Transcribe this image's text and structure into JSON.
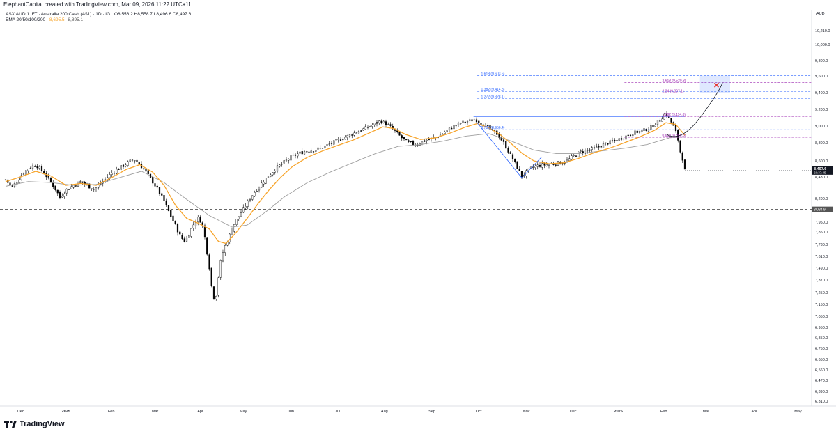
{
  "header": {
    "attribution": "ElephantCapital created with TradingView.com, Mar 09, 2026 11:22 UTC+11"
  },
  "legend": {
    "symbol": "ASX:AUD.1.IFT · Australia 200 Cash (A$1) · 1D · IG",
    "ohlc": "O8,556.2  H8,558.7  L8,496.6  C8,497.6",
    "ema_label": "EMA 20/50/100/200",
    "ema_val1": "8,695.5",
    "ema_val2": "8,895.1"
  },
  "price_axis": {
    "currency": "AUD",
    "current_price": "8,497.6",
    "countdown": "23:37:45",
    "support_label": "8,084.9"
  },
  "branding": {
    "logo_text": "TradingView"
  },
  "colors": {
    "up": "#ffffff",
    "down": "#000000",
    "ema_fast": "#f7a42a",
    "ema_slow": "#9e9e9e",
    "fib_blue": "#2962ff",
    "fib_purple": "#9c27b0",
    "target": "#e53935"
  },
  "chart_data": {
    "type": "candlestick",
    "y_ticks": [
      {
        "v": 10210,
        "label": "10,210.0"
      },
      {
        "v": 10000,
        "label": "10,000.0"
      },
      {
        "v": 9800,
        "label": "9,800.0"
      },
      {
        "v": 9600,
        "label": "9,600.0"
      },
      {
        "v": 9400,
        "label": "9,400.0"
      },
      {
        "v": 9200,
        "label": "9,200.0"
      },
      {
        "v": 9000,
        "label": "9,000.0"
      },
      {
        "v": 8800,
        "label": "8,800.0"
      },
      {
        "v": 8600,
        "label": "8,600.0"
      },
      {
        "v": 8430,
        "label": "8,430.0"
      },
      {
        "v": 8200,
        "label": "8,200.0"
      },
      {
        "v": 7950,
        "label": "7,950.0"
      },
      {
        "v": 7850,
        "label": "7,850.0"
      },
      {
        "v": 7730,
        "label": "7,730.0"
      },
      {
        "v": 7610,
        "label": "7,610.0"
      },
      {
        "v": 7490,
        "label": "7,490.0"
      },
      {
        "v": 7370,
        "label": "7,370.0"
      },
      {
        "v": 7250,
        "label": "7,250.0"
      },
      {
        "v": 7150,
        "label": "7,150.0"
      },
      {
        "v": 7050,
        "label": "7,050.0"
      },
      {
        "v": 6950,
        "label": "6,950.0"
      },
      {
        "v": 6850,
        "label": "6,850.0"
      },
      {
        "v": 6750,
        "label": "6,750.0"
      },
      {
        "v": 6650,
        "label": "6,650.0"
      },
      {
        "v": 6560,
        "label": "6,560.0"
      },
      {
        "v": 6470,
        "label": "6,470.0"
      },
      {
        "v": 6390,
        "label": "6,390.0"
      },
      {
        "v": 6310,
        "label": "6,310.0"
      }
    ],
    "x_ticks": [
      "Dec",
      "2025",
      "Feb",
      "Mar",
      "Apr",
      "May",
      "Jun",
      "Jul",
      "Aug",
      "Sep",
      "Oct",
      "Nov",
      "Dec",
      "2026",
      "Feb",
      "Mar",
      "Apr",
      "May"
    ],
    "x_tick_days": [
      20,
      80,
      140,
      198,
      258,
      315,
      378,
      440,
      502,
      565,
      627,
      690,
      752,
      812,
      872,
      928,
      992,
      1050
    ],
    "total_days": 1068,
    "close_path": [
      [
        0,
        8400
      ],
      [
        8,
        8320
      ],
      [
        15,
        8380
      ],
      [
        22,
        8460
      ],
      [
        30,
        8520
      ],
      [
        40,
        8560
      ],
      [
        50,
        8480
      ],
      [
        58,
        8400
      ],
      [
        66,
        8300
      ],
      [
        72,
        8210
      ],
      [
        80,
        8290
      ],
      [
        90,
        8340
      ],
      [
        100,
        8380
      ],
      [
        110,
        8330
      ],
      [
        118,
        8300
      ],
      [
        126,
        8360
      ],
      [
        134,
        8420
      ],
      [
        142,
        8480
      ],
      [
        150,
        8520
      ],
      [
        160,
        8570
      ],
      [
        170,
        8620
      ],
      [
        178,
        8560
      ],
      [
        186,
        8480
      ],
      [
        194,
        8390
      ],
      [
        202,
        8290
      ],
      [
        210,
        8170
      ],
      [
        218,
        8030
      ],
      [
        226,
        7900
      ],
      [
        232,
        7800
      ],
      [
        238,
        7760
      ],
      [
        244,
        7850
      ],
      [
        250,
        7940
      ],
      [
        256,
        8000
      ],
      [
        262,
        7900
      ],
      [
        266,
        7700
      ],
      [
        270,
        7500
      ],
      [
        274,
        7250
      ],
      [
        278,
        7180
      ],
      [
        282,
        7400
      ],
      [
        286,
        7600
      ],
      [
        290,
        7700
      ],
      [
        296,
        7800
      ],
      [
        304,
        7950
      ],
      [
        312,
        8050
      ],
      [
        320,
        8150
      ],
      [
        328,
        8250
      ],
      [
        338,
        8350
      ],
      [
        348,
        8440
      ],
      [
        358,
        8520
      ],
      [
        368,
        8580
      ],
      [
        378,
        8640
      ],
      [
        388,
        8680
      ],
      [
        398,
        8710
      ],
      [
        408,
        8720
      ],
      [
        418,
        8740
      ],
      [
        428,
        8780
      ],
      [
        438,
        8820
      ],
      [
        448,
        8860
      ],
      [
        458,
        8900
      ],
      [
        468,
        8940
      ],
      [
        478,
        8980
      ],
      [
        488,
        9020
      ],
      [
        496,
        9060
      ],
      [
        502,
        9040
      ],
      [
        510,
        8990
      ],
      [
        518,
        8920
      ],
      [
        526,
        8850
      ],
      [
        534,
        8800
      ],
      [
        544,
        8780
      ],
      [
        554,
        8820
      ],
      [
        564,
        8850
      ],
      [
        574,
        8880
      ],
      [
        584,
        8940
      ],
      [
        594,
        9000
      ],
      [
        604,
        9040
      ],
      [
        614,
        9060
      ],
      [
        622,
        9080
      ],
      [
        628,
        9050
      ],
      [
        636,
        9000
      ],
      [
        644,
        8950
      ],
      [
        652,
        8900
      ],
      [
        660,
        8800
      ],
      [
        668,
        8680
      ],
      [
        676,
        8560
      ],
      [
        684,
        8440
      ],
      [
        690,
        8480
      ],
      [
        698,
        8530
      ],
      [
        706,
        8550
      ],
      [
        716,
        8560
      ],
      [
        726,
        8570
      ],
      [
        736,
        8580
      ],
      [
        744,
        8600
      ],
      [
        752,
        8650
      ],
      [
        762,
        8700
      ],
      [
        772,
        8720
      ],
      [
        782,
        8740
      ],
      [
        792,
        8780
      ],
      [
        802,
        8810
      ],
      [
        812,
        8840
      ],
      [
        822,
        8880
      ],
      [
        832,
        8920
      ],
      [
        842,
        8940
      ],
      [
        852,
        8970
      ],
      [
        860,
        9020
      ],
      [
        868,
        9080
      ],
      [
        874,
        9150
      ],
      [
        880,
        9080
      ],
      [
        886,
        8980
      ],
      [
        890,
        8880
      ],
      [
        894,
        8700
      ],
      [
        898,
        8600
      ],
      [
        900,
        8497
      ]
    ],
    "ema_fast_path": [
      [
        0,
        8380
      ],
      [
        20,
        8430
      ],
      [
        40,
        8490
      ],
      [
        60,
        8440
      ],
      [
        80,
        8340
      ],
      [
        100,
        8360
      ],
      [
        120,
        8340
      ],
      [
        140,
        8420
      ],
      [
        160,
        8510
      ],
      [
        178,
        8560
      ],
      [
        195,
        8480
      ],
      [
        210,
        8340
      ],
      [
        225,
        8130
      ],
      [
        240,
        7990
      ],
      [
        255,
        7940
      ],
      [
        270,
        7880
      ],
      [
        282,
        7760
      ],
      [
        292,
        7740
      ],
      [
        305,
        7840
      ],
      [
        320,
        7990
      ],
      [
        335,
        8150
      ],
      [
        350,
        8300
      ],
      [
        365,
        8430
      ],
      [
        380,
        8540
      ],
      [
        400,
        8640
      ],
      [
        420,
        8710
      ],
      [
        440,
        8770
      ],
      [
        460,
        8830
      ],
      [
        480,
        8910
      ],
      [
        500,
        8990
      ],
      [
        515,
        8970
      ],
      [
        530,
        8900
      ],
      [
        550,
        8840
      ],
      [
        570,
        8860
      ],
      [
        590,
        8920
      ],
      [
        610,
        8990
      ],
      [
        625,
        9030
      ],
      [
        640,
        8980
      ],
      [
        655,
        8900
      ],
      [
        670,
        8790
      ],
      [
        685,
        8680
      ],
      [
        700,
        8600
      ],
      [
        720,
        8570
      ],
      [
        740,
        8580
      ],
      [
        760,
        8630
      ],
      [
        780,
        8690
      ],
      [
        800,
        8740
      ],
      [
        820,
        8800
      ],
      [
        840,
        8870
      ],
      [
        860,
        8950
      ],
      [
        875,
        9040
      ],
      [
        888,
        9020
      ],
      [
        900,
        8890
      ]
    ],
    "ema_slow_path": [
      [
        0,
        8330
      ],
      [
        30,
        8380
      ],
      [
        60,
        8370
      ],
      [
        90,
        8340
      ],
      [
        120,
        8350
      ],
      [
        150,
        8420
      ],
      [
        180,
        8490
      ],
      [
        210,
        8370
      ],
      [
        240,
        8190
      ],
      [
        270,
        8020
      ],
      [
        300,
        7900
      ],
      [
        320,
        7920
      ],
      [
        345,
        8060
      ],
      [
        370,
        8220
      ],
      [
        400,
        8370
      ],
      [
        430,
        8480
      ],
      [
        460,
        8580
      ],
      [
        490,
        8680
      ],
      [
        520,
        8760
      ],
      [
        550,
        8780
      ],
      [
        580,
        8820
      ],
      [
        610,
        8880
      ],
      [
        640,
        8910
      ],
      [
        670,
        8820
      ],
      [
        700,
        8720
      ],
      [
        730,
        8680
      ],
      [
        760,
        8680
      ],
      [
        790,
        8710
      ],
      [
        820,
        8740
      ],
      [
        850,
        8780
      ],
      [
        880,
        8860
      ],
      [
        900,
        8870
      ]
    ],
    "support_level": 8084.9,
    "fib_levels": [
      {
        "label": "1.618 (9,603.6)",
        "v": 9603.6,
        "group": "blue"
      },
      {
        "label": "2.618 (9,520.3)",
        "v": 9520.3,
        "group": "purple"
      },
      {
        "label": "1.382 (9,414.8)",
        "v": 9414.8,
        "group": "blue"
      },
      {
        "label": "2.24 (9,397.1)",
        "v": 9397.1,
        "group": "purple"
      },
      {
        "label": "1.272 (9,328.1)",
        "v": 9328.1,
        "group": "blue"
      },
      {
        "label": "1.382 (9,114.6)",
        "v": 9114.6,
        "group": "purple"
      },
      {
        "label": "0.786 (8,956.4)",
        "v": 8956.4,
        "group": "blue"
      },
      {
        "label": "0.618 (8,866.5)",
        "v": 8866.5,
        "group": "purple"
      }
    ]
  }
}
